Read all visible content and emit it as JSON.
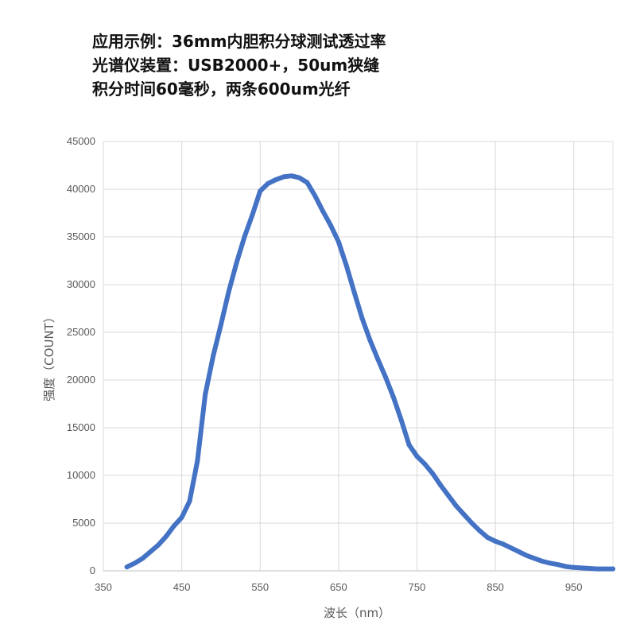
{
  "chart_data": {
    "type": "line",
    "title_lines": [
      "应用示例：36mm内胆积分球测试透过率",
      "光谱仪装置：USB2000+，50um狭缝",
      "积分时间60毫秒，两条600um光纤"
    ],
    "xlabel": "波长（nm）",
    "ylabel": "强度（COUNT）",
    "xlim": [
      350,
      1000
    ],
    "ylim": [
      0,
      45000
    ],
    "x_ticks": [
      350,
      450,
      550,
      650,
      750,
      850,
      950
    ],
    "y_ticks": [
      0,
      5000,
      10000,
      15000,
      20000,
      25000,
      30000,
      35000,
      40000,
      45000
    ],
    "grid": true,
    "line_color": "#4472C4",
    "series": [
      {
        "x": [
          380,
          390,
          400,
          410,
          420,
          430,
          440,
          450,
          460,
          470,
          480,
          490,
          500,
          510,
          520,
          530,
          540,
          550,
          560,
          570,
          580,
          590,
          600,
          610,
          620,
          630,
          640,
          650,
          660,
          670,
          680,
          690,
          700,
          710,
          720,
          730,
          740,
          750,
          760,
          770,
          780,
          790,
          800,
          810,
          820,
          830,
          840,
          850,
          860,
          870,
          880,
          890,
          900,
          910,
          920,
          930,
          940,
          950,
          960,
          970,
          980,
          990,
          1000
        ],
        "y": [
          400,
          800,
          1300,
          2000,
          2700,
          3600,
          4700,
          5600,
          7300,
          11500,
          18500,
          22500,
          25800,
          29300,
          32300,
          35000,
          37300,
          39800,
          40600,
          41000,
          41300,
          41400,
          41200,
          40700,
          39300,
          37700,
          36200,
          34500,
          32000,
          29200,
          26500,
          24200,
          22200,
          20300,
          18200,
          15800,
          13200,
          12000,
          11200,
          10200,
          9000,
          7900,
          6800,
          5900,
          5000,
          4200,
          3500,
          3100,
          2800,
          2400,
          2000,
          1600,
          1300,
          1000,
          800,
          650,
          450,
          350,
          300,
          250,
          200,
          200,
          200
        ]
      }
    ]
  }
}
